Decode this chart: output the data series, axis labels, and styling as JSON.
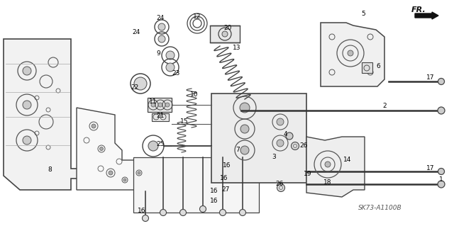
{
  "bg_color": "#ffffff",
  "fig_width": 6.4,
  "fig_height": 3.19,
  "dpi": 100,
  "label_fontsize": 6.5,
  "label_color": "#000000",
  "watermark": "SK73-A1100B",
  "fr_label": "FR."
}
